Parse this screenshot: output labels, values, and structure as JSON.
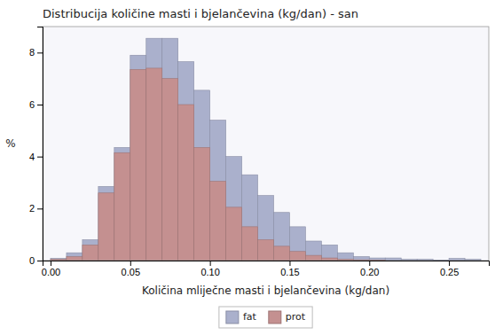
{
  "chart_data": {
    "type": "histogram",
    "title": "Distribucija količine masti i bjelančevina (kg/dan) - san",
    "x_label": "Količina mliječne masti i bjelančevina (kg/dan)",
    "y_label": "%",
    "bins": [
      0,
      0.01,
      0.02,
      0.03,
      0.04,
      0.05,
      0.06,
      0.07,
      0.08,
      0.09,
      0.1,
      0.11,
      0.12,
      0.13,
      0.14,
      0.15,
      0.16,
      0.17,
      0.18,
      0.19,
      0.2,
      0.21,
      0.22,
      0.23,
      0.24,
      0.25,
      0.26,
      0.27
    ],
    "series": [
      {
        "name": "fat",
        "color": "#aab0cc",
        "values": [
          0.08,
          0.3,
          0.8,
          2.85,
          4.35,
          7.9,
          8.55,
          8.55,
          7.65,
          6.55,
          5.4,
          4.0,
          3.3,
          2.5,
          1.85,
          1.3,
          0.75,
          0.6,
          0.3,
          0.15,
          0.1,
          0.1,
          0.05,
          0.05,
          0.02,
          0.08,
          0.05
        ]
      },
      {
        "name": "prot",
        "color": "#c49090",
        "values": [
          0.05,
          0.15,
          0.6,
          2.6,
          4.15,
          7.35,
          7.4,
          7.0,
          6.0,
          4.35,
          3.05,
          2.05,
          1.3,
          0.8,
          0.55,
          0.35,
          0.2,
          0.1,
          0.05,
          0.03,
          0.02,
          0.0,
          0.0,
          0.0,
          0.0,
          0.0,
          0.0
        ]
      }
    ],
    "xlim": [
      -0.005,
      0.275
    ],
    "xticks": [
      {
        "value": 0,
        "label": "0.00"
      },
      0.05,
      {
        "value": 0.1,
        "label": "0.10"
      },
      0.15,
      {
        "value": 0.2,
        "label": "0.20"
      },
      0.25
    ],
    "ylim": [
      0,
      9.0
    ],
    "yticks": [
      0,
      2,
      4,
      6,
      8
    ],
    "grid": false,
    "legend": "bottom"
  }
}
